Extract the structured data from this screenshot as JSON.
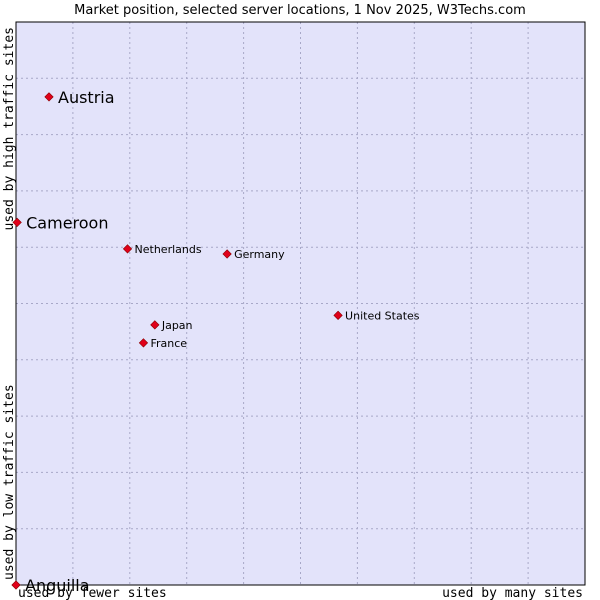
{
  "chart_data": {
    "type": "scatter",
    "title": "Market position, selected server locations, 1 Nov 2025, W3Techs.com",
    "xlabel_left": "used by fewer sites",
    "xlabel_right": "used by many sites",
    "ylabel_bottom": "used by low traffic sites",
    "ylabel_top": "used by high traffic sites",
    "xlim": [
      0,
      100
    ],
    "ylim": [
      0,
      100
    ],
    "grid": true,
    "colors": {
      "plot_background": "#e3e3fa",
      "grid": "#a8a8c8",
      "border": "#000000",
      "point": "#e0001a"
    },
    "points": [
      {
        "name": "Austria",
        "x": 5.8,
        "y": 86.7,
        "emphasis": "large"
      },
      {
        "name": "Cameroon",
        "x": 0.2,
        "y": 64.4,
        "emphasis": "large"
      },
      {
        "name": "Netherlands",
        "x": 19.6,
        "y": 59.7,
        "emphasis": "small"
      },
      {
        "name": "Germany",
        "x": 37.1,
        "y": 58.8,
        "emphasis": "small"
      },
      {
        "name": "United States",
        "x": 56.6,
        "y": 47.9,
        "emphasis": "small"
      },
      {
        "name": "Japan",
        "x": 24.4,
        "y": 46.2,
        "emphasis": "small"
      },
      {
        "name": "France",
        "x": 22.4,
        "y": 43.0,
        "emphasis": "small"
      },
      {
        "name": "Anguilla",
        "x": 0.0,
        "y": 0.0,
        "emphasis": "large"
      }
    ]
  }
}
